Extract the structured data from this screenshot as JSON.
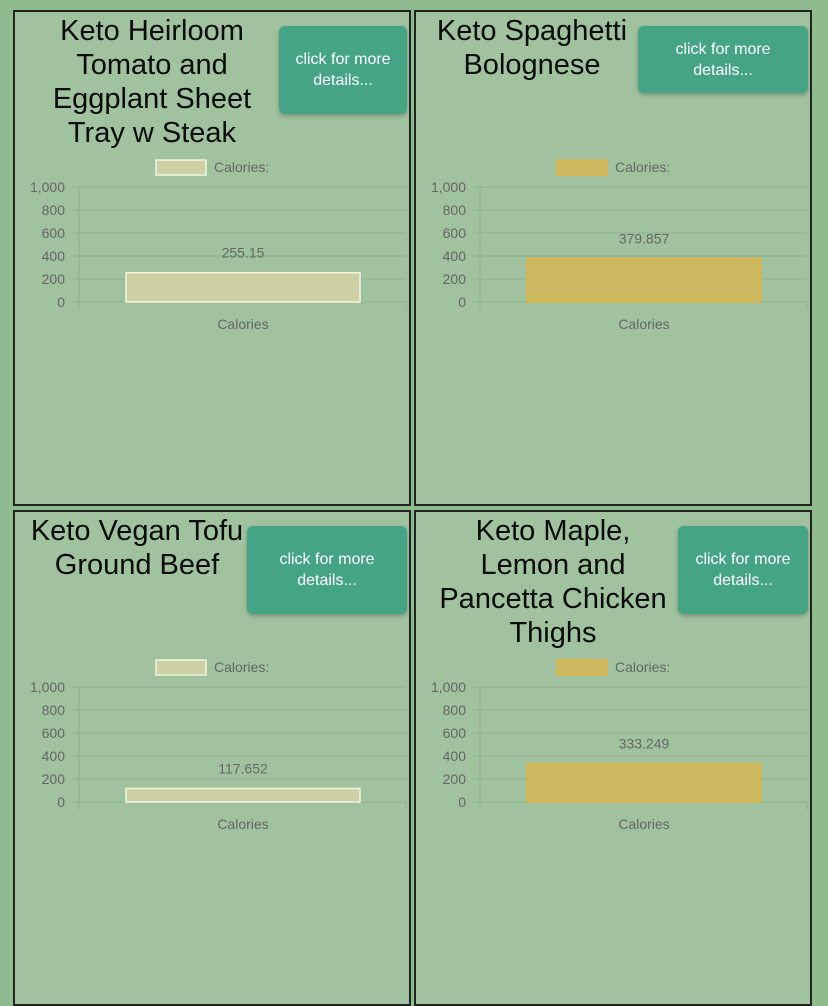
{
  "button_label": "click for more details...",
  "colors": {
    "page_bg": "#8fbc8f",
    "card_bg": "#a0c29f",
    "button_bg": "#45a386",
    "bar_light_fill": "#ccd0a2",
    "bar_light_stroke": "#f2f5dc",
    "bar_gold_fill": "#cdb85f",
    "bar_gold_stroke": "#dfb34a"
  },
  "cards": [
    {
      "title": "Keto Heirloom Tomato and Eggplant Sheet Tray w Steak",
      "bar_style": "light"
    },
    {
      "title": "Keto Spaghetti Bolognese",
      "bar_style": "gold"
    },
    {
      "title": "Keto Vegan Tofu Ground Beef",
      "bar_style": "light"
    },
    {
      "title": "Keto Maple, Lemon and Pancetta Chicken Thighs",
      "bar_style": "gold"
    }
  ],
  "chart_data": [
    {
      "type": "bar",
      "categories": [
        "Calories"
      ],
      "series": [
        {
          "name": "Calories:",
          "values": [
            255.15
          ]
        }
      ],
      "ylim": [
        0,
        1000
      ],
      "yticks": [
        "1,000",
        "800",
        "600",
        "400",
        "200",
        "0"
      ],
      "data_label": "255.15",
      "xlabel": "",
      "ylabel": "",
      "legend": "top-center",
      "grid": true
    },
    {
      "type": "bar",
      "categories": [
        "Calories"
      ],
      "series": [
        {
          "name": "Calories:",
          "values": [
            379.857
          ]
        }
      ],
      "ylim": [
        0,
        1000
      ],
      "yticks": [
        "1,000",
        "800",
        "600",
        "400",
        "200",
        "0"
      ],
      "data_label": "379.857",
      "xlabel": "",
      "ylabel": "",
      "legend": "top-center",
      "grid": true
    },
    {
      "type": "bar",
      "categories": [
        "Calories"
      ],
      "series": [
        {
          "name": "Calories:",
          "values": [
            117.652
          ]
        }
      ],
      "ylim": [
        0,
        1000
      ],
      "yticks": [
        "1,000",
        "800",
        "600",
        "400",
        "200",
        "0"
      ],
      "data_label": "117.652",
      "xlabel": "",
      "ylabel": "",
      "legend": "top-center",
      "grid": true
    },
    {
      "type": "bar",
      "categories": [
        "Calories"
      ],
      "series": [
        {
          "name": "Calories:",
          "values": [
            333.249
          ]
        }
      ],
      "ylim": [
        0,
        1000
      ],
      "yticks": [
        "1,000",
        "800",
        "600",
        "400",
        "200",
        "0"
      ],
      "data_label": "333.249",
      "xlabel": "",
      "ylabel": "",
      "legend": "top-center",
      "grid": true
    }
  ]
}
